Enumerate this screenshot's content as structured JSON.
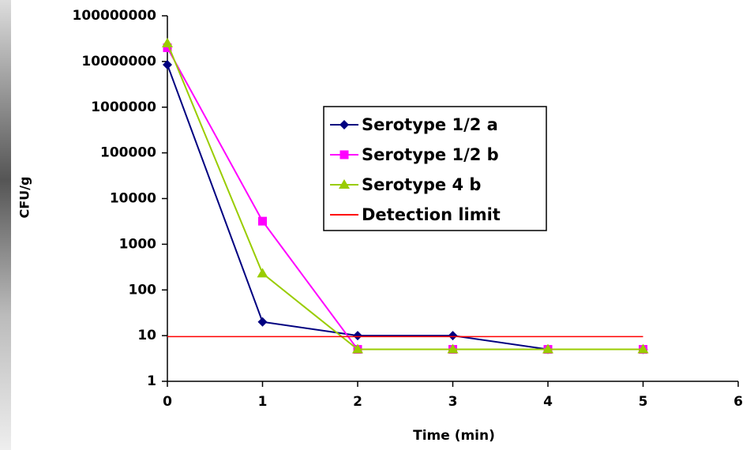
{
  "chart_data": {
    "type": "line",
    "x_label": "Time (min)",
    "y_label": "CFU/g",
    "x": [
      0,
      1,
      2,
      3,
      4,
      5
    ],
    "xlim": [
      0,
      6
    ],
    "xticks": [
      0,
      1,
      2,
      3,
      4,
      5,
      6
    ],
    "ylim": [
      1,
      100000000
    ],
    "yticks": [
      1,
      10,
      100,
      1000,
      10000,
      100000,
      1000000,
      10000000,
      100000000
    ],
    "log_y": true,
    "grid": false,
    "legend": "center",
    "series": [
      {
        "name": "Serotype 1/2 a",
        "color": "#000080",
        "marker": "diamond",
        "values": [
          8500000,
          20,
          10,
          10,
          5,
          5
        ]
      },
      {
        "name": "Serotype 1/2 b",
        "color": "#ff00ff",
        "marker": "square",
        "values": [
          20000000,
          3200,
          5,
          5,
          5,
          5
        ]
      },
      {
        "name": "Serotype 4 b",
        "color": "#99cc00",
        "marker": "triangle",
        "values": [
          25000000,
          230,
          5,
          5,
          5,
          5
        ]
      },
      {
        "name": "Detection limit",
        "color": "#ff0000",
        "marker": "none",
        "values": [
          9.5,
          9.5,
          9.5,
          9.5,
          9.5,
          9.5
        ]
      }
    ]
  }
}
